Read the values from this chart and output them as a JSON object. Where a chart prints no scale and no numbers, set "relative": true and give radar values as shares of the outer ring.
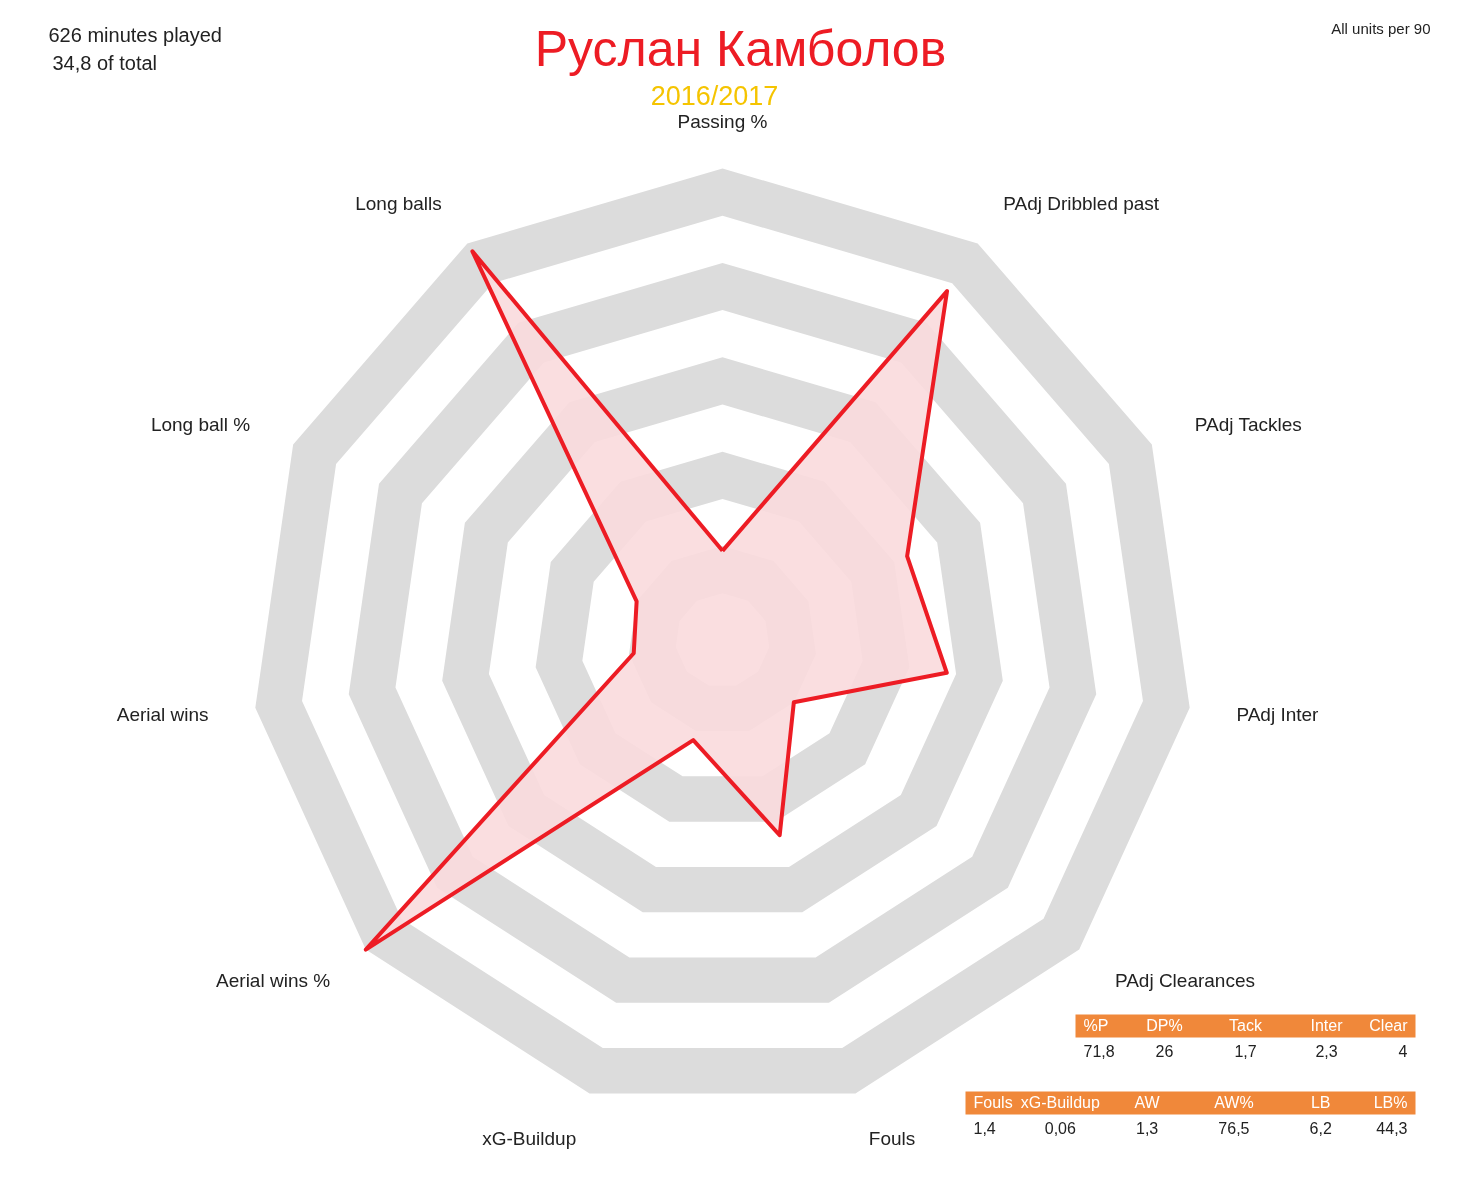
{
  "chart_data": {
    "type": "radar",
    "title": "Руслан Камболов",
    "subtitle": "2016/2017",
    "relative": true,
    "grid": true,
    "categories": [
      "Passing %",
      "PAdj Dribbled past",
      "PAdj Tackles",
      "PAdj Inter",
      "PAdj Clearances",
      "Fouls",
      "xG-Buildup",
      "Aerial wins %",
      "Aerial wins",
      "Long ball %",
      "Long balls"
    ],
    "series": [
      {
        "color": "#ed1c24",
        "values": [
          0.19,
          0.88,
          0.43,
          0.48,
          0.2,
          0.43,
          0.22,
          1.0,
          0.19,
          0.2,
          0.98
        ]
      }
    ],
    "annotations": [
      "626  minutes played",
      "34,8  of total",
      "All units per 90",
      "%P        DP%        Tack        Inter        Clear",
      "71,8          26          1,7          2,3          4",
      "Fouls     xG-Buildup     AW       AW%      LB       LB%",
      "1,4              0,06          1,3        76,5       6,2        44,3"
    ]
  }
}
